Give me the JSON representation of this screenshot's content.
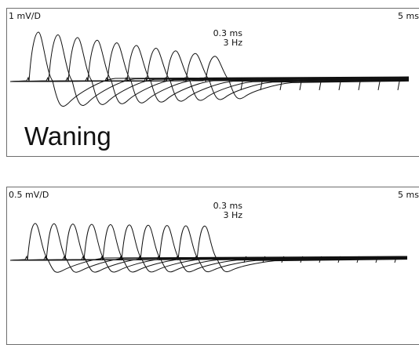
{
  "top_panel": {
    "gain": "1 mV/D",
    "sweep": "5 ms/D",
    "duration": "0.3 ms",
    "rate": "3 Hz",
    "caption": "Waning",
    "response_count": 10
  },
  "bottom_panel": {
    "gain": "0.5 mV/D",
    "sweep": "5 ms/D",
    "duration": "0.3 ms",
    "rate": "3 Hz",
    "response_count": 10
  }
}
